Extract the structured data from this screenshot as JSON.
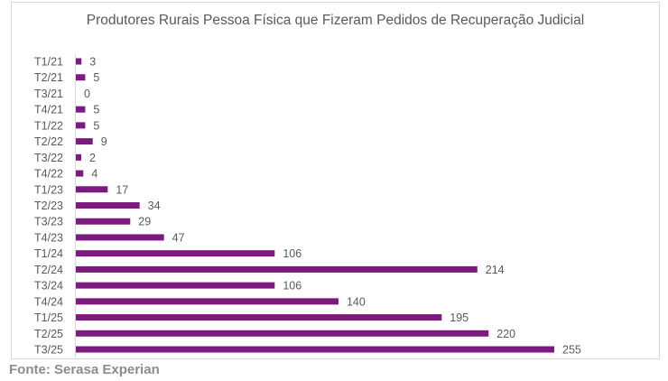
{
  "chart_data": {
    "type": "bar",
    "orientation": "horizontal",
    "title": "Produtores Rurais Pessoa Física que Fizeram Pedidos de Recuperação Judicial",
    "categories": [
      "T1/21",
      "T2/21",
      "T3/21",
      "T4/21",
      "T1/22",
      "T2/22",
      "T3/22",
      "T4/22",
      "T1/23",
      "T2/23",
      "T3/23",
      "T4/23",
      "T1/24",
      "T2/24",
      "T3/24",
      "T4/24",
      "T1/25",
      "T2/25",
      "T3/25"
    ],
    "values": [
      3,
      5,
      0,
      5,
      5,
      9,
      2,
      4,
      17,
      34,
      29,
      47,
      106,
      214,
      106,
      140,
      195,
      220,
      255
    ],
    "data_labels": true,
    "grid": false,
    "legend": "none",
    "xlabel": "",
    "ylabel": "",
    "bar_color": "#7B1A7F"
  },
  "source": "Fonte: Serasa Experian"
}
